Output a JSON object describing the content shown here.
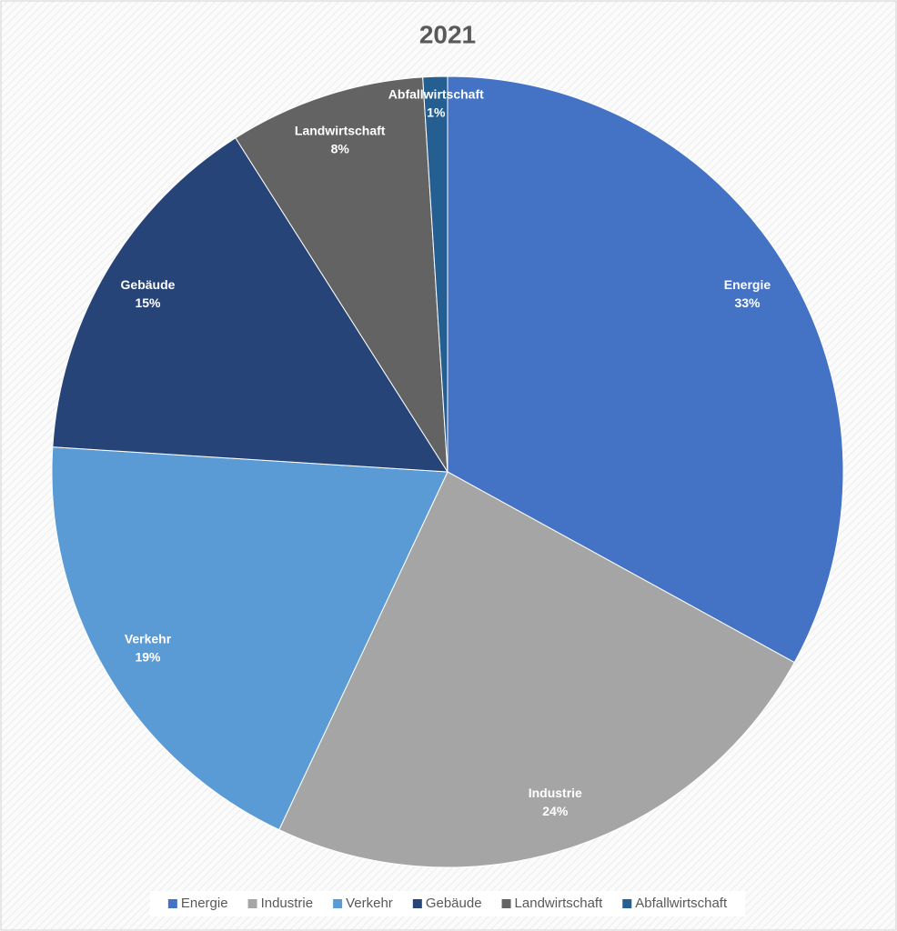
{
  "chart_data": {
    "type": "pie",
    "title": "2021",
    "categories": [
      "Energie",
      "Industrie",
      "Verkehr",
      "Gebäude",
      "Landwirtschaft",
      "Abfallwirtschaft"
    ],
    "values": [
      33,
      24,
      19,
      15,
      8,
      1
    ],
    "value_labels": [
      "33%",
      "24%",
      "19%",
      "15%",
      "8%",
      "1%"
    ],
    "colors": [
      "#4472c4",
      "#a5a5a5",
      "#5b9bd5",
      "#264478",
      "#636363",
      "#255e91"
    ],
    "legend": "bottom"
  }
}
